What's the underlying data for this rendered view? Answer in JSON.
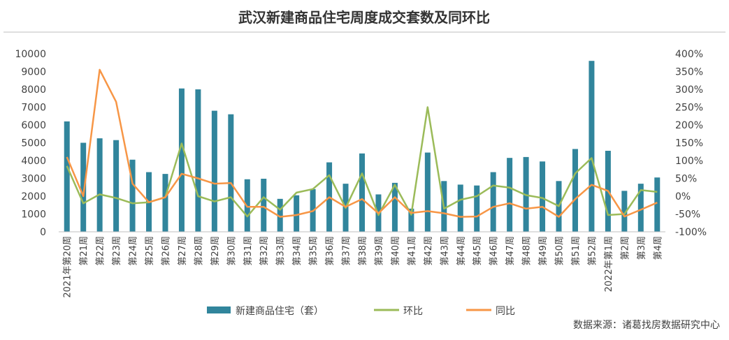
{
  "chart_data": {
    "type": "bar",
    "title": "武汉新建商品住宅周度成交套数及同环比",
    "categories": [
      "2021年第20周",
      "第21周",
      "第22周",
      "第23周",
      "第24周",
      "第25周",
      "第26周",
      "第27周",
      "第28周",
      "第29周",
      "第30周",
      "第31周",
      "第32周",
      "第33周",
      "第34周",
      "第35周",
      "第36周",
      "第37周",
      "第38周",
      "第39周",
      "第40周",
      "第41周",
      "第42周",
      "第43周",
      "第44周",
      "第45周",
      "第46周",
      "第47周",
      "第48周",
      "第49周",
      "第50周",
      "第51周",
      "第52周",
      "2022年第1周",
      "第2周",
      "第3周",
      "第4周"
    ],
    "series": [
      {
        "name": "新建商品住宅（套）",
        "type": "bar",
        "axis": "left",
        "color": "#31859c",
        "values": [
          6200,
          5000,
          5250,
          5150,
          4050,
          3350,
          3250,
          8050,
          8000,
          6800,
          6600,
          2950,
          2980,
          1850,
          2050,
          2400,
          3900,
          2700,
          4400,
          2100,
          2750,
          1300,
          4450,
          2850,
          2650,
          2600,
          3350,
          4150,
          4200,
          3950,
          2850,
          4650,
          9600,
          4550,
          2300,
          2700,
          3050
        ]
      },
      {
        "name": "环比",
        "type": "line",
        "axis": "right",
        "color": "#9bbb59",
        "values": [
          85,
          -20,
          5,
          -5,
          -20,
          -17,
          -3,
          148,
          0,
          -15,
          -3,
          -57,
          -3,
          -38,
          10,
          20,
          59,
          -33,
          64,
          -53,
          32,
          -52,
          250,
          -35,
          -10,
          0,
          30,
          24,
          3,
          -5,
          -28,
          64,
          107,
          -53,
          -50,
          17,
          12
        ]
      },
      {
        "name": "同比",
        "type": "line",
        "axis": "right",
        "color": "#f79646",
        "values": [
          110,
          0,
          355,
          265,
          35,
          -17,
          -3,
          63,
          50,
          35,
          37,
          -30,
          -30,
          -58,
          -53,
          -42,
          -3,
          -30,
          -8,
          -48,
          -3,
          -47,
          -42,
          -48,
          -58,
          -57,
          -30,
          -20,
          -35,
          -30,
          -58,
          -8,
          32,
          15,
          -57,
          -38,
          -18
        ]
      }
    ],
    "y_left": {
      "min": 0,
      "max": 10000,
      "step": 1000,
      "ticks": [
        "0",
        "1000",
        "2000",
        "3000",
        "4000",
        "5000",
        "6000",
        "7000",
        "8000",
        "9000",
        "10000"
      ]
    },
    "y_right": {
      "min": -100,
      "max": 400,
      "step": 50,
      "ticks": [
        "-100%",
        "-50%",
        "0%",
        "50%",
        "100%",
        "150%",
        "200%",
        "250%",
        "300%",
        "350%",
        "400%"
      ]
    },
    "legend_position": "bottom",
    "grid": false,
    "source": "数据来源：诸葛找房数据研究中心"
  }
}
